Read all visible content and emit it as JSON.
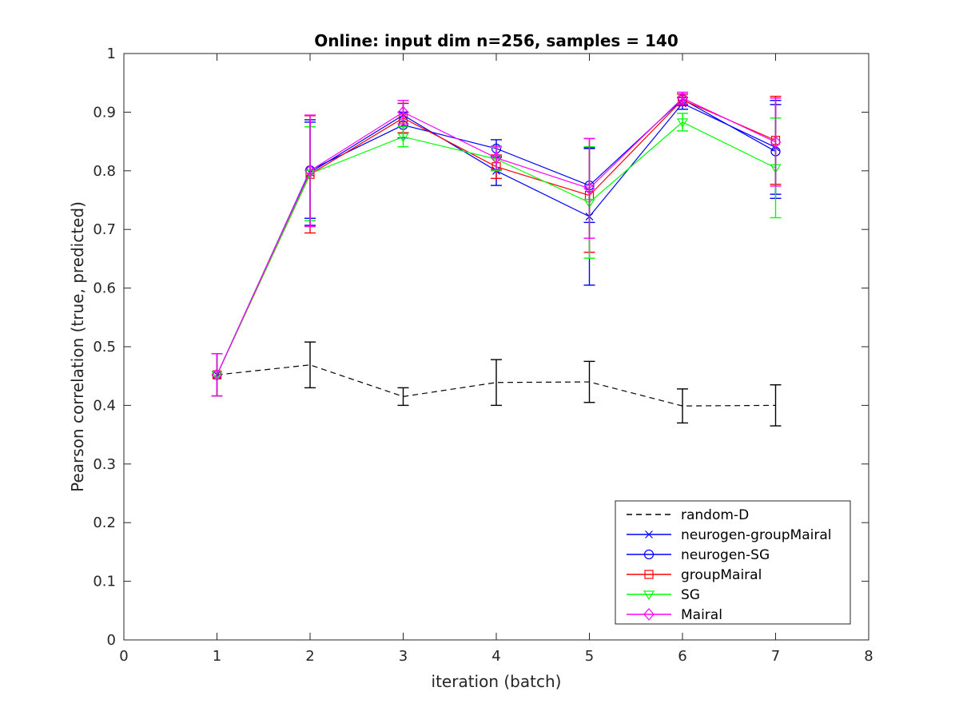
{
  "chart_data": {
    "type": "line",
    "title": "Online:  input dim n=256, samples = 140",
    "xlabel": "iteration (batch)",
    "ylabel": "Pearson correlation (true, predicted)",
    "xlim": [
      0,
      8
    ],
    "ylim": [
      0,
      1
    ],
    "xticks": [
      0,
      1,
      2,
      3,
      4,
      5,
      6,
      7,
      8
    ],
    "yticks": [
      0,
      0.1,
      0.2,
      0.3,
      0.4,
      0.5,
      0.6,
      0.7,
      0.8,
      0.9,
      1
    ],
    "xtick_labels": [
      "0",
      "1",
      "2",
      "3",
      "4",
      "5",
      "6",
      "7",
      "8"
    ],
    "ytick_labels": [
      "0",
      "0.1",
      "0.2",
      "0.3",
      "0.4",
      "0.5",
      "0.6",
      "0.7",
      "0.8",
      "0.9",
      "1"
    ],
    "grid": false,
    "legend_position": "bottom-right",
    "x": [
      1,
      2,
      3,
      4,
      5,
      6,
      7
    ],
    "series": [
      {
        "name": "random-D",
        "color": "#000000",
        "dash": "dashed",
        "marker": "none",
        "values": [
          0.452,
          0.469,
          0.415,
          0.439,
          0.44,
          0.399,
          0.4
        ],
        "errors": [
          0.036,
          0.039,
          0.015,
          0.039,
          0.035,
          0.029,
          0.035
        ]
      },
      {
        "name": "neurogen-groupMairal",
        "color": "#0000ff",
        "dash": "solid",
        "marker": "x",
        "values": [
          0.452,
          0.797,
          0.895,
          0.8,
          0.722,
          0.915,
          0.84
        ],
        "errors": [
          0.036,
          0.09,
          0.02,
          0.025,
          0.117,
          0.01,
          0.08
        ]
      },
      {
        "name": "neurogen-SG",
        "color": "#0000ff",
        "dash": "solid",
        "marker": "circle",
        "values": [
          0.452,
          0.801,
          0.878,
          0.838,
          0.775,
          0.922,
          0.833
        ],
        "errors": [
          0.036,
          0.082,
          0.022,
          0.015,
          0.063,
          0.009,
          0.08
        ]
      },
      {
        "name": "groupMairal",
        "color": "#ff0000",
        "dash": "solid",
        "marker": "square",
        "values": [
          0.452,
          0.794,
          0.89,
          0.807,
          0.758,
          0.921,
          0.852
        ],
        "errors": [
          0.036,
          0.1,
          0.025,
          0.02,
          0.097,
          0.01,
          0.075
        ]
      },
      {
        "name": "SG",
        "color": "#00ff00",
        "dash": "solid",
        "marker": "triangle-down",
        "values": [
          0.452,
          0.795,
          0.858,
          0.82,
          0.746,
          0.883,
          0.805
        ],
        "errors": [
          0.036,
          0.08,
          0.017,
          0.02,
          0.095,
          0.015,
          0.085
        ]
      },
      {
        "name": "Mairal",
        "color": "#ff00ff",
        "dash": "solid",
        "marker": "diamond",
        "values": [
          0.452,
          0.8,
          0.9,
          0.822,
          0.77,
          0.924,
          0.849
        ],
        "errors": [
          0.036,
          0.095,
          0.02,
          0.02,
          0.085,
          0.01,
          0.075
        ]
      }
    ]
  }
}
